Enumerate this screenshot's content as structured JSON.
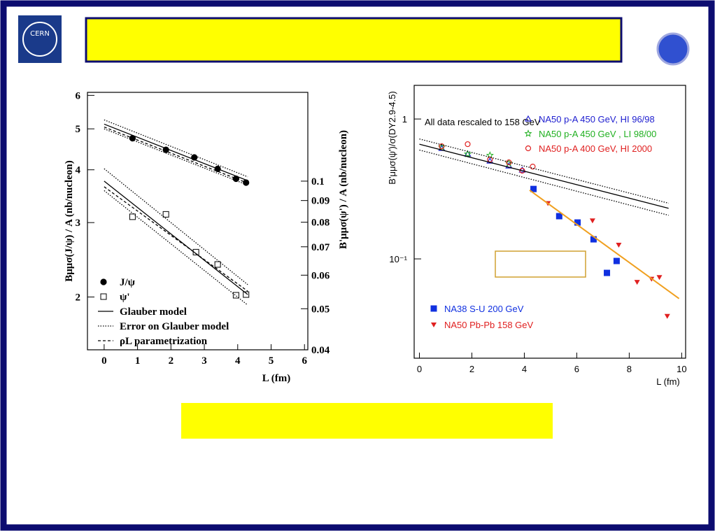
{
  "logo_text": "CERN",
  "chart_data": [
    {
      "type": "scatter",
      "xlabel": "L (fm)",
      "ylabel": "Bμμσ(J/ψ) / A (nb/nucleon)",
      "y2label": "B'μμσ(ψ') / A (nb/nucleon)",
      "xlim": [
        -0.5,
        6.1
      ],
      "ylim": [
        1.5,
        6.1
      ],
      "y2lim": [
        0.04,
        0.162
      ],
      "log_y": true,
      "legend": "lower left",
      "xticks": [
        0,
        1,
        2,
        3,
        4,
        5,
        6
      ],
      "yticks": [
        2,
        3,
        4,
        5,
        6
      ],
      "y2ticks": [
        0.04,
        0.05,
        0.06,
        0.07,
        0.08,
        0.09,
        0.1
      ],
      "series": [
        {
          "name": "J/ψ",
          "marker": "circle",
          "color": "#000000",
          "x": [
            0.85,
            1.85,
            2.7,
            3.4,
            3.95,
            4.25
          ],
          "values": [
            4.75,
            4.46,
            4.28,
            4.02,
            3.81,
            3.73
          ]
        },
        {
          "name": "ψ'",
          "marker": "square-open",
          "color": "#000000",
          "axis": "y2",
          "x": [
            0.85,
            1.85,
            2.75,
            3.4,
            3.95,
            4.25
          ],
          "values": [
            0.0824,
            0.0835,
            0.068,
            0.0636,
            0.0538,
            0.054
          ]
        },
        {
          "name": "Glauber model",
          "line": "solid",
          "color": "#000000",
          "x": [
            0,
            4.3
          ],
          "values": [
            5.13,
            3.77
          ]
        },
        {
          "line": "solid",
          "color": "#000000",
          "axis": "y2",
          "x": [
            0,
            4.3
          ],
          "values": [
            0.1,
            0.054
          ]
        },
        {
          "name": "Error on Glauber model",
          "line": "dotted",
          "color": "#000000",
          "x": [
            0,
            4.3
          ],
          "values": [
            5.25,
            3.85
          ]
        },
        {
          "line": "dotted",
          "color": "#000000",
          "x": [
            0,
            4.3
          ],
          "values": [
            5.0,
            3.68
          ]
        },
        {
          "line": "dotted",
          "color": "#000000",
          "axis": "y2",
          "x": [
            0,
            4.3
          ],
          "values": [
            0.107,
            0.057
          ]
        },
        {
          "line": "dotted",
          "color": "#000000",
          "axis": "y2",
          "x": [
            0,
            4.3
          ],
          "values": [
            0.095,
            0.051
          ]
        },
        {
          "name": "ρL parametrization",
          "line": "dashed",
          "color": "#000000",
          "x": [
            0,
            4.3
          ],
          "values": [
            5.05,
            3.72
          ]
        },
        {
          "line": "dashed",
          "color": "#000000",
          "axis": "y2",
          "x": [
            0,
            4.3
          ],
          "values": [
            0.097,
            0.055
          ]
        }
      ]
    },
    {
      "type": "scatter",
      "xlabel": "L (fm)",
      "ylabel": "B'μμσ(ψ')/σ(DY2.9-4.5)",
      "annotation": "All data rescaled to 158 GeV",
      "xlim": [
        -0.2,
        10.15
      ],
      "ylim": [
        0.0195,
        1.74
      ],
      "log_y": true,
      "xticks": [
        0,
        2,
        4,
        6,
        8,
        10
      ],
      "yticks": [
        {
          "value": 0.1,
          "label": "10⁻¹"
        },
        1
      ],
      "series": [
        {
          "name": "NA50 p-A 450 GeV, HI 96/98",
          "marker": "triangle-open",
          "color": "#2020d0",
          "x": [
            0.85,
            1.84,
            2.69,
            3.41,
            3.92
          ],
          "values": [
            0.617,
            0.562,
            0.501,
            0.462,
            0.432
          ]
        },
        {
          "name": "NA50 p-A 450 GeV , LI 98/00",
          "marker": "star",
          "color": "#20b020",
          "x": [
            0.85,
            1.84,
            2.69,
            3.41
          ],
          "values": [
            0.631,
            0.562,
            0.55,
            0.484
          ]
        },
        {
          "name": "NA50 p-A 400 GeV, HI 2000",
          "marker": "circle-open",
          "color": "#e02020",
          "x": [
            0.85,
            1.84,
            2.69,
            3.41,
            3.92,
            4.32
          ],
          "values": [
            0.638,
            0.661,
            0.513,
            0.49,
            0.427,
            0.457
          ]
        },
        {
          "name": "NA38 S-U 200 GeV",
          "marker": "square",
          "color": "#1030e0",
          "x": [
            4.35,
            5.33,
            6.03,
            6.64,
            7.15,
            7.52
          ],
          "values": [
            0.316,
            0.202,
            0.182,
            0.138,
            0.0794,
            0.0966
          ]
        },
        {
          "name": "NA50 Pb-Pb 158 GeV",
          "marker": "triangle-down",
          "color": "#e02020",
          "x": [
            4.9,
            6.6,
            7.6,
            8.3,
            8.85,
            9.15,
            9.45
          ],
          "values": [
            0.25,
            0.188,
            0.126,
            0.0683,
            0.072,
            0.074,
            0.039
          ]
        },
        {
          "line": "solid",
          "color": "#000000",
          "x": [
            0,
            9.5
          ],
          "values": [
            0.66,
            0.23
          ]
        },
        {
          "line": "dotted",
          "color": "#000000",
          "x": [
            0,
            9.5
          ],
          "values": [
            0.72,
            0.25
          ]
        },
        {
          "line": "dotted",
          "color": "#000000",
          "x": [
            0,
            9.5
          ],
          "values": [
            0.6,
            0.205
          ]
        },
        {
          "line": "solid",
          "color": "#f0a020",
          "x": [
            4.2,
            9.9
          ],
          "values": [
            0.31,
            0.052
          ]
        }
      ]
    }
  ]
}
